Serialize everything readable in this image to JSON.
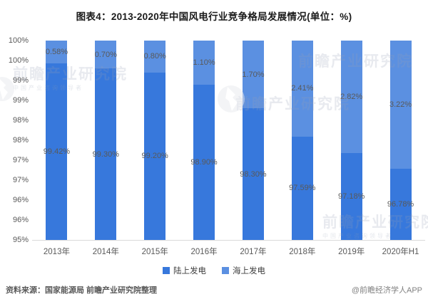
{
  "title": "图表4：2013-2020年中国风电行业竞争格局发展情况(单位：%)",
  "watermark": {
    "text": "前瞻产业研究院",
    "subtext": "中国产业咨询领导者"
  },
  "footer": {
    "source": "资料来源：国家能源局 前瞻产业研究院整理",
    "brand": "@前瞻经济学人APP"
  },
  "colors": {
    "onshore_blue": "#3778DC",
    "offshore_blue": "#5B90E1",
    "axis_line": "#d9d9d9",
    "label_gray": "#595959"
  },
  "chart_data": {
    "type": "bar",
    "stacked": true,
    "title": "图表4：2013-2020年中国风电行业竞争格局发展情况(单位：%)",
    "xlabel": "",
    "ylabel": "",
    "ylim": [
      95,
      100
    ],
    "grid": false,
    "legend_position": "bottom",
    "categories": [
      "2013年",
      "2014年",
      "2015年",
      "2016年",
      "2017年",
      "2018年",
      "2019年",
      "2020年H1"
    ],
    "series": [
      {
        "name": "陆上发电",
        "color": "#3778DC",
        "values": [
          99.42,
          99.3,
          99.2,
          98.9,
          98.3,
          97.59,
          97.18,
          96.78
        ],
        "labels": [
          "99.42%",
          "99.30%",
          "99.20%",
          "98.90%",
          "98.30%",
          "97.59%",
          "97.18%",
          "96.78%"
        ]
      },
      {
        "name": "海上发电",
        "color": "#5B90E1",
        "values": [
          0.58,
          0.7,
          0.8,
          1.1,
          1.7,
          2.41,
          2.82,
          3.22
        ],
        "labels": [
          "0.58%",
          "0.70%",
          "0.80%",
          "1.10%",
          "1.70%",
          "2.41%",
          "2.82%",
          "3.22%"
        ]
      }
    ],
    "y_tick_labels_top_to_bottom": [
      "100%",
      "100%",
      "99%",
      "99%",
      "98%",
      "98%",
      "97%",
      "97%",
      "96%",
      "96%",
      "95%"
    ]
  }
}
